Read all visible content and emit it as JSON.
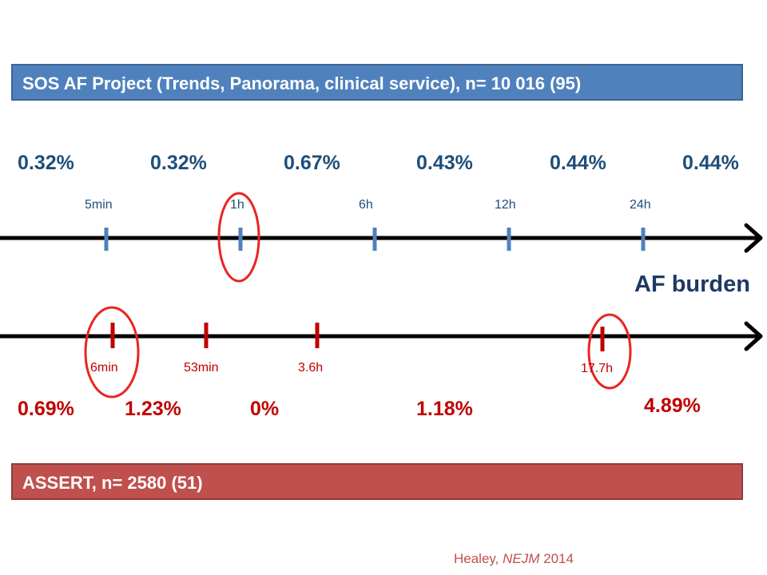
{
  "top_banner": {
    "text": "SOS AF Project (Trends, Panorama, clinical service), n= 10 016 (95)",
    "color": "#4f81bd"
  },
  "bottom_banner": {
    "text": "ASSERT, n= 2580 (51)",
    "color": "#c0504d"
  },
  "top_timeline": {
    "percentages": [
      "0.32%",
      "0.32%",
      "0.67%",
      "0.43%",
      "0.44%",
      "0.44%"
    ],
    "ticks": [
      "5min",
      "1h",
      "6h",
      "12h",
      "24h"
    ],
    "highlighted_tick": "1h",
    "color": "#1f4e79"
  },
  "axis_title": "AF burden",
  "bottom_timeline": {
    "percentages": [
      "0.69%",
      "1.23%",
      "0%",
      "1.18%",
      "4.89%"
    ],
    "ticks": [
      "6min",
      "53min",
      "3.6h",
      "17.7h"
    ],
    "highlighted_ticks": [
      "6min",
      "17.7h"
    ],
    "color": "#c00000"
  },
  "citation": {
    "author": "Healey, ",
    "journal": "NEJM",
    "year": " 2014"
  }
}
